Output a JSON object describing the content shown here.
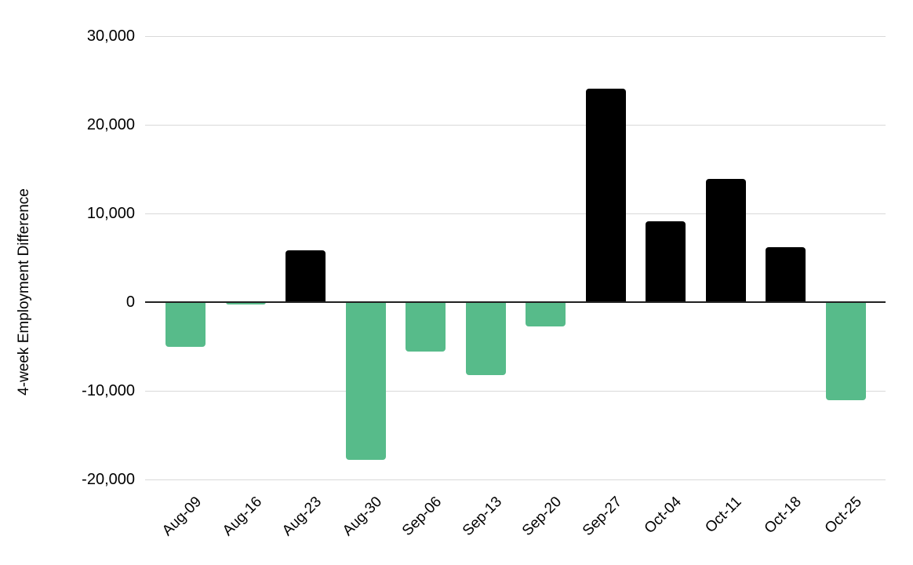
{
  "chart_data": {
    "type": "bar",
    "title": "",
    "xlabel": "",
    "ylabel": "4-week Employment Difference",
    "categories": [
      "Aug-09",
      "Aug-16",
      "Aug-23",
      "Aug-30",
      "Sep-06",
      "Sep-13",
      "Sep-20",
      "Sep-27",
      "Oct-04",
      "Oct-11",
      "Oct-18",
      "Oct-25"
    ],
    "values": [
      -5000,
      -300,
      5800,
      -17800,
      -5600,
      -8200,
      -2700,
      24100,
      9100,
      13900,
      6200,
      -11100
    ],
    "ylim": [
      -20000,
      30000
    ],
    "grid": true,
    "legend": "none",
    "y_ticks": [
      {
        "label": "30,000",
        "value": 30000
      },
      {
        "label": "20,000",
        "value": 20000
      },
      {
        "label": "10,000",
        "value": 10000
      },
      {
        "label": "0",
        "value": 0
      },
      {
        "label": "-10,000",
        "value": -10000
      },
      {
        "label": "-20,000",
        "value": -20000
      }
    ],
    "colors": {
      "positive": "#000000",
      "negative": "#57bb8a"
    }
  }
}
